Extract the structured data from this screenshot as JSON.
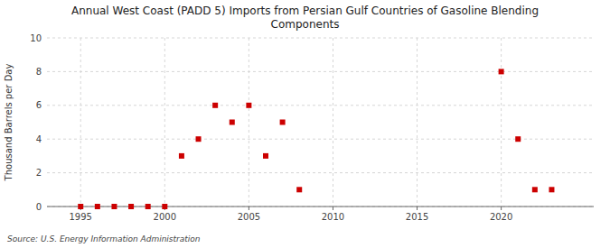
{
  "chart_data": {
    "type": "scatter",
    "title": "Annual West Coast (PADD 5) Imports from Persian Gulf Countries of Gasoline Blending\nComponents",
    "y_label": "Thousand Barrels per Day",
    "annotations": [
      "Source: U.S. Energy Information Administration"
    ],
    "x": [
      1995,
      1996,
      1997,
      1998,
      1999,
      2000,
      2001,
      2002,
      2003,
      2004,
      2005,
      2006,
      2007,
      2008,
      2020,
      2021,
      2022,
      2023
    ],
    "values": [
      0,
      0,
      0,
      0,
      0,
      0,
      3,
      4,
      6,
      5,
      6,
      3,
      5,
      1,
      8,
      4,
      1,
      1
    ],
    "color": "#cc0000",
    "marker": "square",
    "xlim": [
      1993,
      2025.5
    ],
    "ylim": [
      0,
      10
    ],
    "xticks": [
      1995,
      2000,
      2005,
      2010,
      2015,
      2020
    ],
    "yticks": [
      0,
      2,
      4,
      6,
      8,
      10
    ],
    "grid": true
  }
}
